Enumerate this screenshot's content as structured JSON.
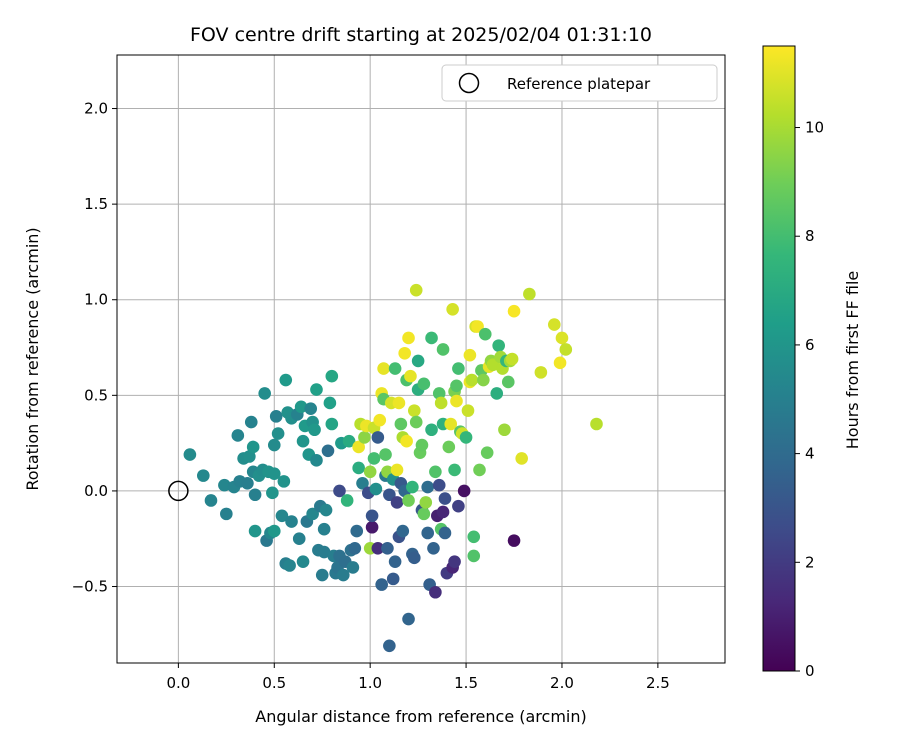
{
  "chart_data": {
    "type": "scatter",
    "title": "FOV centre drift starting at 2025/02/04 01:31:10",
    "xlabel": "Angular distance from reference (arcmin)",
    "ylabel": "Rotation from reference (arcmin)",
    "xlim": [
      -0.32,
      2.85
    ],
    "ylim": [
      -0.9,
      2.28
    ],
    "xticks": [
      0.0,
      0.5,
      1.0,
      1.5,
      2.0,
      2.5
    ],
    "xtick_labels": [
      "0.0",
      "0.5",
      "1.0",
      "1.5",
      "2.0",
      "2.5"
    ],
    "yticks": [
      -0.5,
      0.0,
      0.5,
      1.0,
      1.5,
      2.0
    ],
    "ytick_labels": [
      "−0.5",
      "0.0",
      "0.5",
      "1.0",
      "1.5",
      "2.0"
    ],
    "grid": true,
    "legend": {
      "position": "top-right",
      "entries": [
        "Reference platepar"
      ]
    },
    "reference_point": {
      "x": 0.0,
      "y": 0.0,
      "label": "Reference platepar"
    },
    "colorbar": {
      "label": "Hours from first FF file",
      "colormap": "viridis",
      "range": [
        0,
        11.5
      ],
      "ticks": [
        0,
        2,
        4,
        6,
        8,
        10
      ],
      "tick_labels": [
        "0",
        "2",
        "4",
        "6",
        "8",
        "10"
      ]
    },
    "points": [
      {
        "x": 0.06,
        "y": 0.19,
        "h": 5.5
      },
      {
        "x": 0.13,
        "y": 0.08,
        "h": 5.4
      },
      {
        "x": 0.17,
        "y": -0.05,
        "h": 5.2
      },
      {
        "x": 0.24,
        "y": 0.03,
        "h": 5.3
      },
      {
        "x": 0.25,
        "y": -0.12,
        "h": 5.0
      },
      {
        "x": 0.29,
        "y": 0.02,
        "h": 5.2
      },
      {
        "x": 0.31,
        "y": 0.29,
        "h": 5.2
      },
      {
        "x": 0.32,
        "y": 0.05,
        "h": 5.0
      },
      {
        "x": 0.34,
        "y": 0.17,
        "h": 5.6
      },
      {
        "x": 0.36,
        "y": 0.04,
        "h": 4.9
      },
      {
        "x": 0.37,
        "y": 0.18,
        "h": 5.7
      },
      {
        "x": 0.38,
        "y": 0.36,
        "h": 5.1
      },
      {
        "x": 0.39,
        "y": 0.1,
        "h": 5.3
      },
      {
        "x": 0.39,
        "y": 0.23,
        "h": 6.0
      },
      {
        "x": 0.4,
        "y": -0.02,
        "h": 5.0
      },
      {
        "x": 0.4,
        "y": -0.21,
        "h": 6.0
      },
      {
        "x": 0.42,
        "y": 0.08,
        "h": 5.7
      },
      {
        "x": 0.44,
        "y": 0.11,
        "h": 5.6
      },
      {
        "x": 0.45,
        "y": 0.51,
        "h": 5.6
      },
      {
        "x": 0.46,
        "y": -0.26,
        "h": 4.6
      },
      {
        "x": 0.47,
        "y": 0.1,
        "h": 5.9
      },
      {
        "x": 0.48,
        "y": -0.22,
        "h": 5.3
      },
      {
        "x": 0.49,
        "y": -0.01,
        "h": 6.0
      },
      {
        "x": 0.5,
        "y": 0.09,
        "h": 5.9
      },
      {
        "x": 0.5,
        "y": 0.24,
        "h": 5.5
      },
      {
        "x": 0.5,
        "y": -0.21,
        "h": 6.1
      },
      {
        "x": 0.51,
        "y": 0.39,
        "h": 5.0
      },
      {
        "x": 0.52,
        "y": 0.3,
        "h": 5.7
      },
      {
        "x": 0.54,
        "y": -0.13,
        "h": 5.3
      },
      {
        "x": 0.55,
        "y": 0.05,
        "h": 5.9
      },
      {
        "x": 0.56,
        "y": 0.58,
        "h": 6.2
      },
      {
        "x": 0.56,
        "y": -0.38,
        "h": 4.9
      },
      {
        "x": 0.57,
        "y": 0.41,
        "h": 5.8
      },
      {
        "x": 0.58,
        "y": -0.39,
        "h": 5.2
      },
      {
        "x": 0.59,
        "y": 0.38,
        "h": 5.7
      },
      {
        "x": 0.59,
        "y": -0.16,
        "h": 5.1
      },
      {
        "x": 0.62,
        "y": 0.4,
        "h": 5.1
      },
      {
        "x": 0.63,
        "y": -0.25,
        "h": 5.0
      },
      {
        "x": 0.64,
        "y": 0.44,
        "h": 6.1
      },
      {
        "x": 0.65,
        "y": 0.26,
        "h": 6.0
      },
      {
        "x": 0.65,
        "y": -0.37,
        "h": 5.4
      },
      {
        "x": 0.66,
        "y": 0.34,
        "h": 6.2
      },
      {
        "x": 0.67,
        "y": -0.16,
        "h": 4.6
      },
      {
        "x": 0.68,
        "y": 0.19,
        "h": 6.0
      },
      {
        "x": 0.69,
        "y": 0.43,
        "h": 5.2
      },
      {
        "x": 0.7,
        "y": 0.36,
        "h": 5.8
      },
      {
        "x": 0.7,
        "y": -0.12,
        "h": 5.3
      },
      {
        "x": 0.71,
        "y": 0.32,
        "h": 6.1
      },
      {
        "x": 0.72,
        "y": 0.53,
        "h": 6.5
      },
      {
        "x": 0.72,
        "y": 0.16,
        "h": 5.4
      },
      {
        "x": 0.73,
        "y": -0.31,
        "h": 4.8
      },
      {
        "x": 0.74,
        "y": -0.08,
        "h": 4.7
      },
      {
        "x": 0.75,
        "y": -0.44,
        "h": 4.8
      },
      {
        "x": 0.76,
        "y": -0.2,
        "h": 5.0
      },
      {
        "x": 0.76,
        "y": -0.32,
        "h": 4.8
      },
      {
        "x": 0.77,
        "y": -0.1,
        "h": 5.3
      },
      {
        "x": 0.78,
        "y": 0.21,
        "h": 4.2
      },
      {
        "x": 0.79,
        "y": 0.46,
        "h": 6.5
      },
      {
        "x": 0.8,
        "y": 0.6,
        "h": 6.8
      },
      {
        "x": 0.8,
        "y": 0.35,
        "h": 6.7
      },
      {
        "x": 0.81,
        "y": -0.34,
        "h": 4.9
      },
      {
        "x": 0.82,
        "y": -0.43,
        "h": 4.6
      },
      {
        "x": 0.83,
        "y": -0.4,
        "h": 4.4
      },
      {
        "x": 0.84,
        "y": 0.0,
        "h": 2.6
      },
      {
        "x": 0.84,
        "y": -0.34,
        "h": 4.3
      },
      {
        "x": 0.85,
        "y": 0.25,
        "h": 6.2
      },
      {
        "x": 0.86,
        "y": -0.44,
        "h": 4.8
      },
      {
        "x": 0.87,
        "y": -0.37,
        "h": 4.2
      },
      {
        "x": 0.88,
        "y": -0.05,
        "h": 7.5
      },
      {
        "x": 0.89,
        "y": 0.26,
        "h": 7.0
      },
      {
        "x": 0.9,
        "y": -0.31,
        "h": 4.3
      },
      {
        "x": 0.91,
        "y": -0.4,
        "h": 4.8
      },
      {
        "x": 0.92,
        "y": -0.3,
        "h": 3.9
      },
      {
        "x": 0.93,
        "y": -0.21,
        "h": 4.0
      },
      {
        "x": 0.94,
        "y": 0.12,
        "h": 7.1
      },
      {
        "x": 0.94,
        "y": 0.23,
        "h": 11.2
      },
      {
        "x": 0.95,
        "y": 0.35,
        "h": 10.3
      },
      {
        "x": 0.96,
        "y": 0.04,
        "h": 4.9
      },
      {
        "x": 0.97,
        "y": 0.28,
        "h": 9.5
      },
      {
        "x": 0.98,
        "y": 0.34,
        "h": 11.2
      },
      {
        "x": 0.99,
        "y": -0.01,
        "h": 2.7
      },
      {
        "x": 1.0,
        "y": 0.1,
        "h": 9.6
      },
      {
        "x": 1.0,
        "y": -0.3,
        "h": 9.8
      },
      {
        "x": 1.01,
        "y": -0.19,
        "h": 0.8
      },
      {
        "x": 1.01,
        "y": -0.13,
        "h": 3.0
      },
      {
        "x": 1.02,
        "y": 0.33,
        "h": 10.6
      },
      {
        "x": 1.02,
        "y": 0.17,
        "h": 8.0
      },
      {
        "x": 1.03,
        "y": 0.01,
        "h": 5.7
      },
      {
        "x": 1.04,
        "y": 0.28,
        "h": 3.3
      },
      {
        "x": 1.04,
        "y": -0.3,
        "h": 1.5
      },
      {
        "x": 1.05,
        "y": 0.37,
        "h": 11.3
      },
      {
        "x": 1.06,
        "y": -0.49,
        "h": 3.6
      },
      {
        "x": 1.06,
        "y": 0.51,
        "h": 11.2
      },
      {
        "x": 1.07,
        "y": 0.64,
        "h": 11.1
      },
      {
        "x": 1.07,
        "y": 0.48,
        "h": 8.5
      },
      {
        "x": 1.08,
        "y": 0.08,
        "h": 4.6
      },
      {
        "x": 1.08,
        "y": 0.19,
        "h": 8.4
      },
      {
        "x": 1.09,
        "y": -0.3,
        "h": 3.5
      },
      {
        "x": 1.09,
        "y": 0.1,
        "h": 9.6
      },
      {
        "x": 1.1,
        "y": -0.81,
        "h": 3.6
      },
      {
        "x": 1.1,
        "y": -0.02,
        "h": 3.0
      },
      {
        "x": 1.11,
        "y": 0.46,
        "h": 10.8
      },
      {
        "x": 1.12,
        "y": -0.46,
        "h": 3.3
      },
      {
        "x": 1.12,
        "y": 0.06,
        "h": 5.8
      },
      {
        "x": 1.13,
        "y": -0.37,
        "h": 3.6
      },
      {
        "x": 1.13,
        "y": 0.64,
        "h": 8.0
      },
      {
        "x": 1.14,
        "y": -0.06,
        "h": 2.2
      },
      {
        "x": 1.14,
        "y": 0.11,
        "h": 11.2
      },
      {
        "x": 1.15,
        "y": 0.46,
        "h": 11.2
      },
      {
        "x": 1.15,
        "y": -0.24,
        "h": 2.9
      },
      {
        "x": 1.16,
        "y": 0.35,
        "h": 8.6
      },
      {
        "x": 1.16,
        "y": 0.04,
        "h": 3.2
      },
      {
        "x": 1.17,
        "y": 0.28,
        "h": 10.1
      },
      {
        "x": 1.17,
        "y": -0.21,
        "h": 3.8
      },
      {
        "x": 1.18,
        "y": 0.72,
        "h": 11.3
      },
      {
        "x": 1.18,
        "y": 0.0,
        "h": 3.8
      },
      {
        "x": 1.19,
        "y": 0.58,
        "h": 8.2
      },
      {
        "x": 1.19,
        "y": 0.26,
        "h": 11.3
      },
      {
        "x": 1.2,
        "y": -0.67,
        "h": 3.7
      },
      {
        "x": 1.2,
        "y": -0.05,
        "h": 9.0
      },
      {
        "x": 1.2,
        "y": 0.8,
        "h": 11.3
      },
      {
        "x": 1.21,
        "y": 0.6,
        "h": 11.1
      },
      {
        "x": 1.22,
        "y": 0.02,
        "h": 7.5
      },
      {
        "x": 1.22,
        "y": -0.33,
        "h": 3.6
      },
      {
        "x": 1.23,
        "y": 0.42,
        "h": 10.6
      },
      {
        "x": 1.23,
        "y": -0.35,
        "h": 3.4
      },
      {
        "x": 1.24,
        "y": 0.36,
        "h": 8.9
      },
      {
        "x": 1.24,
        "y": 1.05,
        "h": 10.6
      },
      {
        "x": 1.25,
        "y": 0.53,
        "h": 7.2
      },
      {
        "x": 1.25,
        "y": 0.68,
        "h": 6.9
      },
      {
        "x": 1.26,
        "y": 0.2,
        "h": 8.8
      },
      {
        "x": 1.27,
        "y": 0.24,
        "h": 8.7
      },
      {
        "x": 1.27,
        "y": -0.1,
        "h": 3.1
      },
      {
        "x": 1.28,
        "y": 0.56,
        "h": 8.1
      },
      {
        "x": 1.28,
        "y": -0.12,
        "h": 8.8
      },
      {
        "x": 1.29,
        "y": -0.06,
        "h": 9.6
      },
      {
        "x": 1.3,
        "y": 0.02,
        "h": 4.1
      },
      {
        "x": 1.3,
        "y": -0.22,
        "h": 3.7
      },
      {
        "x": 1.31,
        "y": -0.49,
        "h": 3.5
      },
      {
        "x": 1.32,
        "y": 0.32,
        "h": 7.3
      },
      {
        "x": 1.32,
        "y": 0.8,
        "h": 7.8
      },
      {
        "x": 1.33,
        "y": -0.3,
        "h": 3.6
      },
      {
        "x": 1.34,
        "y": -0.53,
        "h": 1.5
      },
      {
        "x": 1.34,
        "y": 0.1,
        "h": 8.3
      },
      {
        "x": 1.35,
        "y": -0.13,
        "h": 1.0
      },
      {
        "x": 1.36,
        "y": 0.51,
        "h": 8.3
      },
      {
        "x": 1.36,
        "y": 0.03,
        "h": 2.7
      },
      {
        "x": 1.37,
        "y": -0.2,
        "h": 8.4
      },
      {
        "x": 1.37,
        "y": 0.46,
        "h": 10.4
      },
      {
        "x": 1.38,
        "y": -0.11,
        "h": 1.2
      },
      {
        "x": 1.38,
        "y": 0.74,
        "h": 8.3
      },
      {
        "x": 1.38,
        "y": 0.35,
        "h": 7.3
      },
      {
        "x": 1.39,
        "y": -0.22,
        "h": 3.6
      },
      {
        "x": 1.39,
        "y": -0.04,
        "h": 2.8
      },
      {
        "x": 1.4,
        "y": -0.43,
        "h": 2.0
      },
      {
        "x": 1.41,
        "y": 0.23,
        "h": 8.9
      },
      {
        "x": 1.42,
        "y": 0.35,
        "h": 11.1
      },
      {
        "x": 1.43,
        "y": -0.4,
        "h": 1.2
      },
      {
        "x": 1.43,
        "y": 0.95,
        "h": 10.8
      },
      {
        "x": 1.44,
        "y": 0.11,
        "h": 7.8
      },
      {
        "x": 1.44,
        "y": 0.52,
        "h": 9.2
      },
      {
        "x": 1.44,
        "y": -0.37,
        "h": 1.8
      },
      {
        "x": 1.45,
        "y": 0.55,
        "h": 8.4
      },
      {
        "x": 1.45,
        "y": 0.47,
        "h": 11.2
      },
      {
        "x": 1.46,
        "y": -0.08,
        "h": 2.2
      },
      {
        "x": 1.46,
        "y": 0.64,
        "h": 8.0
      },
      {
        "x": 1.47,
        "y": 0.31,
        "h": 8.5
      },
      {
        "x": 1.48,
        "y": 0.3,
        "h": 10.7
      },
      {
        "x": 1.49,
        "y": 0.0,
        "h": 0.5
      },
      {
        "x": 1.5,
        "y": 0.28,
        "h": 7.6
      },
      {
        "x": 1.51,
        "y": 0.42,
        "h": 10.6
      },
      {
        "x": 1.52,
        "y": 0.57,
        "h": 11.2
      },
      {
        "x": 1.52,
        "y": 0.71,
        "h": 11.2
      },
      {
        "x": 1.53,
        "y": 0.58,
        "h": 10.3
      },
      {
        "x": 1.54,
        "y": -0.24,
        "h": 8.0
      },
      {
        "x": 1.54,
        "y": -0.34,
        "h": 8.3
      },
      {
        "x": 1.55,
        "y": 0.86,
        "h": 10.8
      },
      {
        "x": 1.56,
        "y": 0.86,
        "h": 11.3
      },
      {
        "x": 1.57,
        "y": 0.11,
        "h": 9.0
      },
      {
        "x": 1.58,
        "y": 0.63,
        "h": 8.6
      },
      {
        "x": 1.59,
        "y": 0.58,
        "h": 9.4
      },
      {
        "x": 1.6,
        "y": 0.82,
        "h": 8.2
      },
      {
        "x": 1.61,
        "y": 0.2,
        "h": 8.8
      },
      {
        "x": 1.62,
        "y": 0.65,
        "h": 11.1
      },
      {
        "x": 1.63,
        "y": 0.68,
        "h": 9.6
      },
      {
        "x": 1.64,
        "y": 0.66,
        "h": 10.2
      },
      {
        "x": 1.66,
        "y": 0.51,
        "h": 7.2
      },
      {
        "x": 1.67,
        "y": 0.76,
        "h": 7.5
      },
      {
        "x": 1.68,
        "y": 0.7,
        "h": 9.9
      },
      {
        "x": 1.69,
        "y": 0.64,
        "h": 10.2
      },
      {
        "x": 1.7,
        "y": 0.32,
        "h": 9.8
      },
      {
        "x": 1.71,
        "y": 0.68,
        "h": 7.6
      },
      {
        "x": 1.72,
        "y": 0.57,
        "h": 8.5
      },
      {
        "x": 1.73,
        "y": 0.68,
        "h": 9.9
      },
      {
        "x": 1.74,
        "y": 0.69,
        "h": 10.5
      },
      {
        "x": 1.75,
        "y": 0.94,
        "h": 11.4
      },
      {
        "x": 1.75,
        "y": -0.26,
        "h": 0.4
      },
      {
        "x": 1.79,
        "y": 0.17,
        "h": 11.0
      },
      {
        "x": 1.83,
        "y": 1.03,
        "h": 10.4
      },
      {
        "x": 1.89,
        "y": 0.62,
        "h": 10.7
      },
      {
        "x": 1.96,
        "y": 0.87,
        "h": 10.8
      },
      {
        "x": 1.99,
        "y": 0.67,
        "h": 11.3
      },
      {
        "x": 2.0,
        "y": 0.8,
        "h": 10.9
      },
      {
        "x": 2.02,
        "y": 0.74,
        "h": 10.5
      },
      {
        "x": 2.18,
        "y": 0.35,
        "h": 10.3
      }
    ]
  }
}
